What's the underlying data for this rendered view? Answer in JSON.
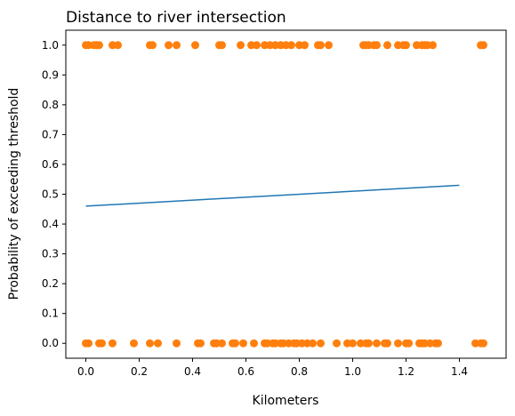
{
  "chart_data": {
    "type": "scatter",
    "title": "Distance to river intersection",
    "xlabel": "Kilometers",
    "ylabel": "Probability of exceeding threshold",
    "xlim": [
      -0.075,
      1.575
    ],
    "ylim": [
      -0.05,
      1.05
    ],
    "xticks": [
      0.0,
      0.2,
      0.4,
      0.6,
      0.8,
      1.0,
      1.2,
      1.4
    ],
    "xtick_labels": [
      "0.0",
      "0.2",
      "0.4",
      "0.6",
      "0.8",
      "1.0",
      "1.2",
      "1.4"
    ],
    "yticks": [
      0.0,
      0.1,
      0.2,
      0.3,
      0.4,
      0.5,
      0.6,
      0.7,
      0.8,
      0.9,
      1.0
    ],
    "ytick_labels": [
      "0.0",
      "0.1",
      "0.2",
      "0.3",
      "0.4",
      "0.5",
      "0.6",
      "0.7",
      "0.8",
      "0.9",
      "1.0"
    ],
    "grid": false,
    "legend": false,
    "series": [
      {
        "kind": "line",
        "color": "#1f77b4",
        "x": [
          0.0,
          1.4
        ],
        "y": [
          0.46,
          0.53
        ]
      },
      {
        "kind": "scatter",
        "color": "#ff7f0e",
        "points": [
          [
            0.0,
            1.0
          ],
          [
            0.01,
            1.0
          ],
          [
            0.03,
            1.0
          ],
          [
            0.04,
            1.0
          ],
          [
            0.05,
            1.0
          ],
          [
            0.1,
            1.0
          ],
          [
            0.12,
            1.0
          ],
          [
            0.24,
            1.0
          ],
          [
            0.25,
            1.0
          ],
          [
            0.31,
            1.0
          ],
          [
            0.34,
            1.0
          ],
          [
            0.41,
            1.0
          ],
          [
            0.5,
            1.0
          ],
          [
            0.51,
            1.0
          ],
          [
            0.58,
            1.0
          ],
          [
            0.62,
            1.0
          ],
          [
            0.64,
            1.0
          ],
          [
            0.67,
            1.0
          ],
          [
            0.69,
            1.0
          ],
          [
            0.71,
            1.0
          ],
          [
            0.73,
            1.0
          ],
          [
            0.75,
            1.0
          ],
          [
            0.77,
            1.0
          ],
          [
            0.8,
            1.0
          ],
          [
            0.82,
            1.0
          ],
          [
            0.87,
            1.0
          ],
          [
            0.88,
            1.0
          ],
          [
            0.91,
            1.0
          ],
          [
            1.04,
            1.0
          ],
          [
            1.05,
            1.0
          ],
          [
            1.06,
            1.0
          ],
          [
            1.08,
            1.0
          ],
          [
            1.09,
            1.0
          ],
          [
            1.13,
            1.0
          ],
          [
            1.17,
            1.0
          ],
          [
            1.19,
            1.0
          ],
          [
            1.2,
            1.0
          ],
          [
            1.24,
            1.0
          ],
          [
            1.26,
            1.0
          ],
          [
            1.27,
            1.0
          ],
          [
            1.28,
            1.0
          ],
          [
            1.3,
            1.0
          ],
          [
            1.48,
            1.0
          ],
          [
            1.49,
            1.0
          ],
          [
            0.0,
            0.0
          ],
          [
            0.01,
            0.0
          ],
          [
            0.05,
            0.0
          ],
          [
            0.06,
            0.0
          ],
          [
            0.1,
            0.0
          ],
          [
            0.18,
            0.0
          ],
          [
            0.24,
            0.0
          ],
          [
            0.27,
            0.0
          ],
          [
            0.34,
            0.0
          ],
          [
            0.42,
            0.0
          ],
          [
            0.43,
            0.0
          ],
          [
            0.48,
            0.0
          ],
          [
            0.49,
            0.0
          ],
          [
            0.51,
            0.0
          ],
          [
            0.55,
            0.0
          ],
          [
            0.56,
            0.0
          ],
          [
            0.59,
            0.0
          ],
          [
            0.63,
            0.0
          ],
          [
            0.67,
            0.0
          ],
          [
            0.68,
            0.0
          ],
          [
            0.7,
            0.0
          ],
          [
            0.71,
            0.0
          ],
          [
            0.73,
            0.0
          ],
          [
            0.74,
            0.0
          ],
          [
            0.76,
            0.0
          ],
          [
            0.78,
            0.0
          ],
          [
            0.79,
            0.0
          ],
          [
            0.81,
            0.0
          ],
          [
            0.83,
            0.0
          ],
          [
            0.85,
            0.0
          ],
          [
            0.88,
            0.0
          ],
          [
            0.94,
            0.0
          ],
          [
            0.98,
            0.0
          ],
          [
            1.0,
            0.0
          ],
          [
            1.03,
            0.0
          ],
          [
            1.05,
            0.0
          ],
          [
            1.06,
            0.0
          ],
          [
            1.09,
            0.0
          ],
          [
            1.12,
            0.0
          ],
          [
            1.13,
            0.0
          ],
          [
            1.17,
            0.0
          ],
          [
            1.2,
            0.0
          ],
          [
            1.21,
            0.0
          ],
          [
            1.25,
            0.0
          ],
          [
            1.26,
            0.0
          ],
          [
            1.27,
            0.0
          ],
          [
            1.29,
            0.0
          ],
          [
            1.31,
            0.0
          ],
          [
            1.32,
            0.0
          ],
          [
            1.46,
            0.0
          ],
          [
            1.48,
            0.0
          ],
          [
            1.49,
            0.0
          ]
        ]
      }
    ]
  }
}
